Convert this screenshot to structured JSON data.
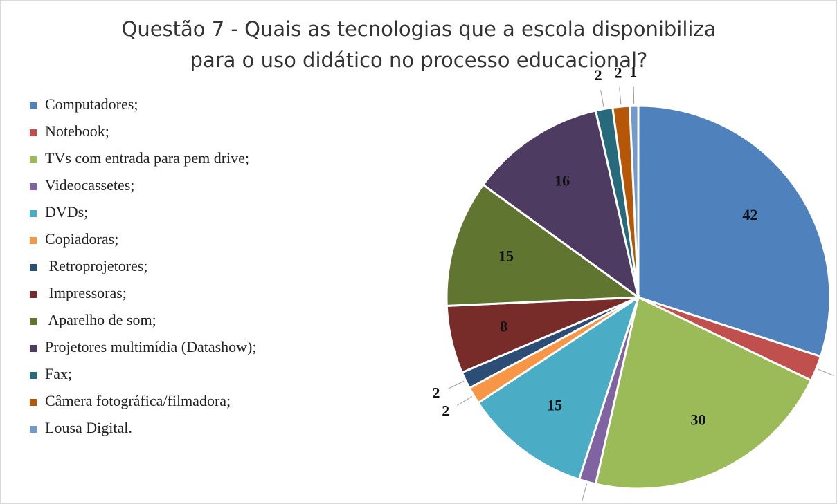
{
  "chart_data": {
    "type": "pie",
    "title_lines": [
      "Questão 7 - Quais as tecnologias que a escola disponibiliza",
      "para o uso didático no processo educacional?"
    ],
    "categories": [
      "Computadores;",
      "Notebook;",
      "TVs com entrada para pem drive;",
      "Videocassetes;",
      "DVDs;",
      "Copiadoras;",
      " Retroprojetores;",
      " Impressoras;",
      " Aparelho de som;",
      "Projetores multimídia (Datashow);",
      "Fax;",
      "Câmera fotográfica/filmadora;",
      "Lousa Digital."
    ],
    "values": [
      42,
      3,
      30,
      2,
      15,
      2,
      2,
      8,
      15,
      16,
      2,
      2,
      1
    ],
    "colors": [
      "#4f81bd",
      "#c0504d",
      "#9bbb59",
      "#8064a2",
      "#4bacc6",
      "#f79646",
      "#2c4d75",
      "#772c2a",
      "#5f7530",
      "#4d3b62",
      "#276a7c",
      "#b65708",
      "#729aca"
    ],
    "legend": "left"
  }
}
